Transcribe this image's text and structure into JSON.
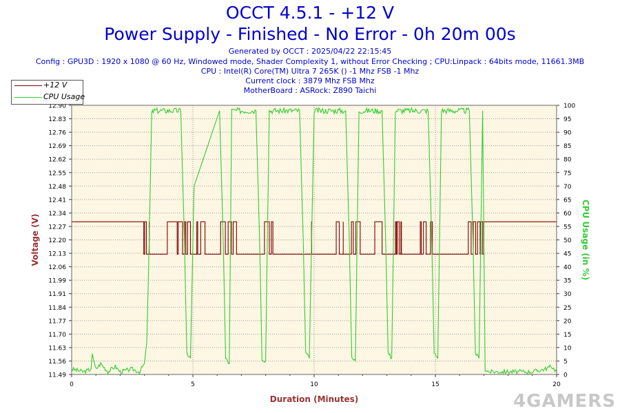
{
  "header": {
    "title_line1": "OCCT 4.5.1 - +12 V",
    "title_line2": "Power Supply - Finished - No Error - 0h 20m 00s",
    "info_lines": [
      "Generated by OCCT : 2025/04/22 22:15:45",
      "Config : GPU3D : 1920 x 1080 @ 60 Hz, Windowed mode, Shader Complexity 1, without Error Checking ; CPU:Linpack : 64bits mode, 11661.3MB",
      "CPU : Intel(R) Core(TM) Ultra 7 265K () -1 Mhz FSB -1 Mhz",
      "Current clock : 3879 Mhz FSB  Mhz",
      "MotherBoard : ASRock: Z890 Taichi"
    ]
  },
  "legend": [
    {
      "label": "+12 V",
      "color": "#800000"
    },
    {
      "label": "CPU Usage",
      "color": "#33cc33"
    }
  ],
  "watermark": "4GAMERS",
  "colors": {
    "plot_bg": "#fcf6e2",
    "voltage": "#800000",
    "cpu": "#33cc33",
    "title": "#0000cc",
    "axis_label": "#993333",
    "cpu_axis_label": "#33cc33"
  },
  "chart_data": {
    "type": "line",
    "xlabel": "Duration (Minutes)",
    "ylabel": "Voltage (V)",
    "y2label": "CPU Usage (in %)",
    "xlim": [
      0,
      20
    ],
    "ylim": [
      11.49,
      12.9
    ],
    "y2lim": [
      0,
      100
    ],
    "x_ticks": [
      "0",
      "5",
      "10",
      "15",
      "20"
    ],
    "y_ticks": [
      "11.49",
      "11.56",
      "11.63",
      "11.70",
      "11.77",
      "11.84",
      "11.91",
      "11.99",
      "12.06",
      "12.13",
      "12.20",
      "12.27",
      "12.34",
      "12.41",
      "12.48",
      "12.55",
      "12.62",
      "12.69",
      "12.76",
      "12.83",
      "12.90"
    ],
    "y2_ticks": [
      "0",
      "5",
      "10",
      "15",
      "20",
      "25",
      "30",
      "35",
      "40",
      "45",
      "50",
      "55",
      "60",
      "65",
      "70",
      "75",
      "80",
      "85",
      "90",
      "95",
      "100"
    ],
    "grid": true,
    "legend_position": "top-left",
    "series": [
      {
        "name": "+12 V",
        "axis": "left",
        "levels": [
          12.12,
          12.29
        ],
        "idle_value": 12.29,
        "load_value": 12.12,
        "toggle_bursts_minutes": [
          [
            2.9,
            3.2
          ],
          [
            3.8,
            4.9
          ],
          [
            5.1,
            5.5
          ],
          [
            6.1,
            6.8
          ],
          [
            7.5,
            8.3
          ],
          [
            9.7,
            9.9
          ],
          [
            10.8,
            11.2
          ],
          [
            11.5,
            11.9
          ],
          [
            12.4,
            13.0
          ],
          [
            13.3,
            13.6
          ],
          [
            14.3,
            15.0
          ],
          [
            16.2,
            17.0
          ]
        ]
      },
      {
        "name": "CPU Usage",
        "axis": "right",
        "x": [
          0,
          0.5,
          0.8,
          0.85,
          0.9,
          1.0,
          1.2,
          1.5,
          1.8,
          2.0,
          2.5,
          2.8,
          3.0,
          3.1,
          3.2,
          3.3,
          3.4,
          4.5,
          4.65,
          4.75,
          4.9,
          5.05,
          6.1,
          6.25,
          6.35,
          6.5,
          6.6,
          7.6,
          7.75,
          7.85,
          8.0,
          8.15,
          9.4,
          9.55,
          9.65,
          9.8,
          10.0,
          11.3,
          11.45,
          11.55,
          11.7,
          11.85,
          12.8,
          12.95,
          13.05,
          13.2,
          13.35,
          14.7,
          14.85,
          14.95,
          15.1,
          15.25,
          16.4,
          16.55,
          16.65,
          16.8,
          16.95,
          17.05,
          17.2,
          18.0,
          19.0,
          19.5,
          19.8,
          20.0
        ],
        "values": [
          2,
          1,
          2,
          8,
          5,
          2,
          4,
          1,
          3,
          1,
          2,
          1,
          4,
          12,
          50,
          97,
          98,
          98,
          50,
          8,
          6,
          70,
          98,
          50,
          6,
          4,
          98,
          98,
          50,
          6,
          5,
          98,
          98,
          50,
          8,
          6,
          98,
          98,
          50,
          6,
          5,
          98,
          98,
          50,
          8,
          6,
          98,
          98,
          50,
          8,
          6,
          98,
          98,
          50,
          8,
          6,
          98,
          2,
          1,
          1,
          1,
          2,
          3,
          1
        ]
      }
    ]
  }
}
